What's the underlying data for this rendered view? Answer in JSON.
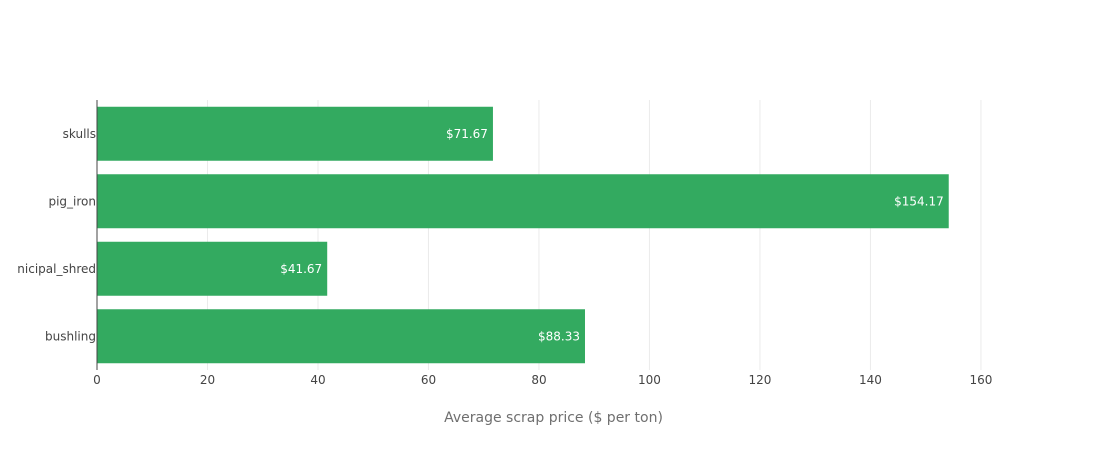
{
  "chart_data": {
    "type": "bar",
    "orientation": "horizontal",
    "categories": [
      "skulls",
      "pig_iron",
      "nicipal_shred",
      "bushling"
    ],
    "values": [
      71.67,
      154.17,
      41.67,
      88.33
    ],
    "data_labels": [
      "$71.67",
      "$154.17",
      "$41.67",
      "$88.33"
    ],
    "title": "",
    "xlabel": "Average scrap price ($ per ton)",
    "ylabel": "",
    "xlim": [
      0,
      172.5
    ],
    "xticks": [
      0,
      20,
      40,
      60,
      80,
      100,
      120,
      140,
      160
    ],
    "grid": true,
    "legend": "none",
    "bar_color": "#33aa60"
  }
}
